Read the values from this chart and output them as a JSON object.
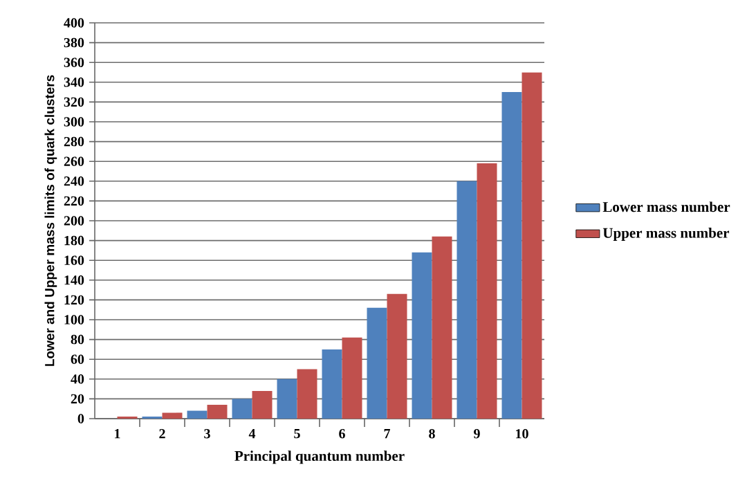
{
  "chart_data": {
    "type": "bar",
    "xlabel": "Principal quantum number",
    "ylabel": "Lower and Upper mass limits of quark clusters",
    "categories": [
      "1",
      "2",
      "3",
      "4",
      "5",
      "6",
      "7",
      "8",
      "9",
      "10"
    ],
    "series": [
      {
        "name": "Lower mass number",
        "color": "#4f81bd",
        "values": [
          0,
          2,
          8,
          20,
          40,
          70,
          112,
          168,
          240,
          330
        ]
      },
      {
        "name": "Upper mass number",
        "color": "#c0504d",
        "values": [
          2,
          6,
          14,
          28,
          50,
          82,
          126,
          184,
          258,
          350
        ]
      }
    ],
    "ylim": [
      0,
      400
    ],
    "yticks": [
      0,
      20,
      40,
      60,
      80,
      100,
      120,
      140,
      160,
      180,
      200,
      220,
      240,
      260,
      280,
      300,
      320,
      340,
      360,
      380,
      400
    ],
    "grid": "y",
    "legend": "right"
  }
}
